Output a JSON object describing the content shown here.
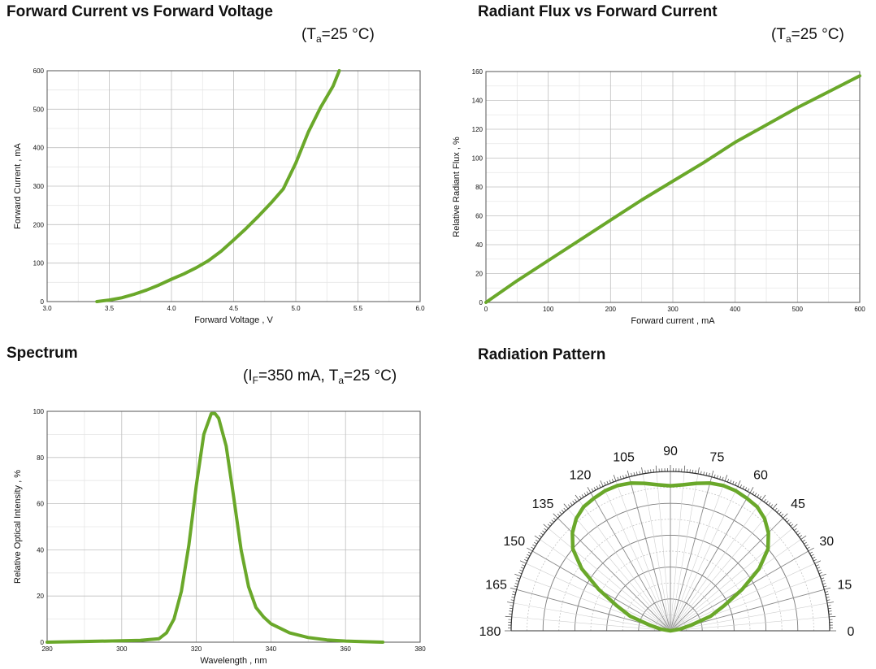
{
  "colors": {
    "curve": "#6aa82a",
    "grid": "#bfbfbf",
    "frame": "#555555"
  },
  "chart_data": [
    {
      "type": "line",
      "title": "Forward Current vs Forward Voltage",
      "condition": {
        "prefix": "(T",
        "sub": "a",
        "suffix": "=25 °C)"
      },
      "xlabel": "Forward Voltage , V",
      "ylabel": "Forward Current , mA",
      "xlim": [
        3.0,
        6.0
      ],
      "ylim": [
        0,
        600
      ],
      "xticks": [
        "3.0",
        "3.5",
        "4.0",
        "4.5",
        "5.0",
        "5.5",
        "6.0"
      ],
      "yticks": [
        "0",
        "100",
        "200",
        "300",
        "400",
        "500",
        "600"
      ],
      "grid": true,
      "series": [
        {
          "x": [
            3.4,
            3.5,
            3.6,
            3.7,
            3.8,
            3.9,
            4.0,
            4.1,
            4.2,
            4.3,
            4.4,
            4.5,
            4.6,
            4.7,
            4.8,
            4.9,
            5.0,
            5.1,
            5.2,
            5.3,
            5.35
          ],
          "y": [
            0,
            4,
            10,
            19,
            30,
            43,
            58,
            72,
            88,
            107,
            131,
            160,
            190,
            222,
            256,
            293,
            360,
            440,
            505,
            560,
            600
          ]
        }
      ]
    },
    {
      "type": "line",
      "title": "Radiant Flux vs Forward Current",
      "condition": {
        "prefix": "(T",
        "sub": "a",
        "suffix": "=25 °C)"
      },
      "xlabel": "Forward current , mA",
      "ylabel": "Relative Radiant Flux , %",
      "xlim": [
        0,
        600
      ],
      "ylim": [
        0,
        160
      ],
      "xticks": [
        "0",
        "100",
        "200",
        "300",
        "400",
        "500",
        "600"
      ],
      "yticks": [
        "0",
        "20",
        "40",
        "60",
        "80",
        "100",
        "120",
        "140",
        "160"
      ],
      "grid": true,
      "series": [
        {
          "x": [
            0,
            50,
            100,
            150,
            200,
            250,
            300,
            350,
            400,
            450,
            500,
            550,
            600
          ],
          "y": [
            0,
            15,
            29,
            43,
            57,
            71,
            84,
            97,
            111,
            123,
            135,
            146,
            157
          ]
        }
      ]
    },
    {
      "type": "line",
      "title": "Spectrum",
      "condition": {
        "prefix": "(I",
        "sub": "F",
        "suffix": "=350 mA, T",
        "sub2": "a",
        "suffix2": "=25 °C)"
      },
      "xlabel": "Wavelength , nm",
      "ylabel": "Relative Optical Intensity , %",
      "xlim": [
        280,
        380
      ],
      "ylim": [
        0,
        100
      ],
      "xticks": [
        "280",
        "300",
        "320",
        "340",
        "360",
        "380"
      ],
      "yticks": [
        "0",
        "20",
        "40",
        "60",
        "80",
        "100"
      ],
      "grid": true,
      "series": [
        {
          "x": [
            280,
            290,
            300,
            305,
            310,
            312,
            314,
            316,
            318,
            320,
            322,
            324,
            325,
            326,
            328,
            330,
            332,
            334,
            336,
            338,
            340,
            345,
            350,
            355,
            360,
            365,
            370
          ],
          "y": [
            0,
            0.3,
            0.6,
            0.8,
            1.5,
            4,
            10,
            22,
            42,
            68,
            90,
            99,
            99,
            97,
            85,
            63,
            40,
            24,
            15,
            11,
            8,
            4,
            2,
            1,
            0.5,
            0.2,
            0
          ]
        }
      ]
    },
    {
      "type": "polar",
      "title": "Radiation Pattern",
      "angle_labels": [
        "0",
        "15",
        "30",
        "45",
        "60",
        "75",
        "90",
        "105",
        "120",
        "135",
        "150",
        "165",
        "180"
      ],
      "grid": true,
      "series": [
        {
          "angle": [
            0,
            10,
            15,
            20,
            25,
            30,
            35,
            40,
            45,
            50,
            55,
            60,
            65,
            70,
            75,
            80,
            85,
            90,
            95,
            100,
            105,
            110,
            115,
            120,
            125,
            130,
            135,
            140,
            145,
            150,
            155,
            160,
            165,
            170,
            180
          ],
          "r": [
            0,
            0.06,
            0.13,
            0.27,
            0.37,
            0.52,
            0.68,
            0.8,
            0.87,
            0.92,
            0.95,
            0.96,
            0.97,
            0.97,
            0.96,
            0.94,
            0.92,
            0.91,
            0.92,
            0.94,
            0.96,
            0.97,
            0.97,
            0.96,
            0.95,
            0.92,
            0.87,
            0.8,
            0.68,
            0.52,
            0.37,
            0.27,
            0.13,
            0.06,
            0
          ]
        }
      ]
    }
  ]
}
